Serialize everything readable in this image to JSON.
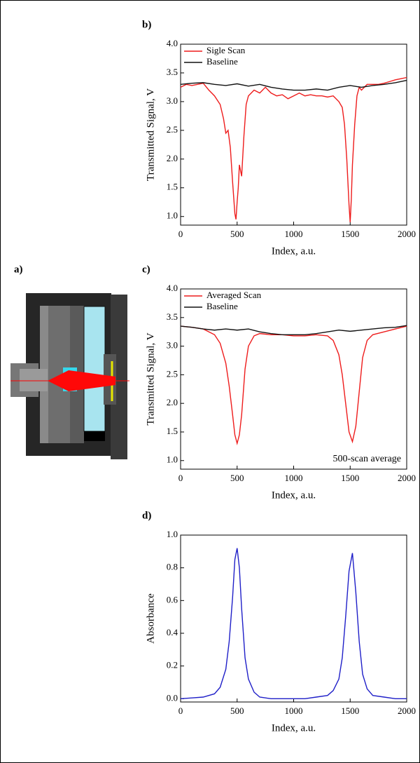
{
  "diagram": {
    "label": "a)"
  },
  "chart_data": [
    {
      "type": "line",
      "label": "b)",
      "xlabel": "Index, a.u.",
      "ylabel": "Transmitted Signal, V",
      "xlim": [
        0,
        2000
      ],
      "xticks": [
        0,
        500,
        1000,
        1500,
        2000
      ],
      "ylim": [
        0.85,
        4.0
      ],
      "yticks": [
        {
          "value": 1,
          "label": "1.0"
        },
        {
          "value": 1.5,
          "label": "1.5"
        },
        {
          "value": 2,
          "label": "2.0"
        },
        {
          "value": 2.5,
          "label": "2.5"
        },
        {
          "value": 3,
          "label": "3.0"
        },
        {
          "value": 3.5,
          "label": "3.5"
        },
        {
          "value": 4,
          "label": "4.0"
        }
      ],
      "legend": "upper left",
      "series": [
        {
          "name": "Sigle Scan",
          "color": "#ee1c1c",
          "x": [
            0,
            50,
            100,
            150,
            200,
            250,
            300,
            350,
            380,
            400,
            420,
            440,
            460,
            480,
            490,
            500,
            510,
            520,
            540,
            560,
            580,
            600,
            650,
            700,
            750,
            800,
            850,
            900,
            950,
            1000,
            1050,
            1100,
            1150,
            1200,
            1250,
            1300,
            1350,
            1400,
            1430,
            1450,
            1470,
            1490,
            1500,
            1510,
            1520,
            1540,
            1560,
            1580,
            1600,
            1650,
            1700,
            1750,
            1800,
            1850,
            1900,
            1950,
            2000
          ],
          "values": [
            3.25,
            3.3,
            3.28,
            3.3,
            3.32,
            3.2,
            3.1,
            2.95,
            2.7,
            2.45,
            2.5,
            2.2,
            1.6,
            1.05,
            0.95,
            1.25,
            1.5,
            1.9,
            1.7,
            2.4,
            2.95,
            3.1,
            3.2,
            3.15,
            3.25,
            3.15,
            3.1,
            3.12,
            3.05,
            3.1,
            3.15,
            3.1,
            3.12,
            3.1,
            3.1,
            3.08,
            3.1,
            3.0,
            2.9,
            2.6,
            2.0,
            1.2,
            0.9,
            1.3,
            1.9,
            2.6,
            3.1,
            3.25,
            3.2,
            3.3,
            3.3,
            3.3,
            3.32,
            3.35,
            3.38,
            3.4,
            3.42
          ]
        },
        {
          "name": "Baseline",
          "color": "#111111",
          "x": [
            0,
            100,
            200,
            300,
            400,
            500,
            600,
            700,
            800,
            900,
            1000,
            1100,
            1200,
            1300,
            1400,
            1500,
            1600,
            1700,
            1800,
            1900,
            2000
          ],
          "values": [
            3.3,
            3.32,
            3.33,
            3.3,
            3.28,
            3.31,
            3.27,
            3.3,
            3.25,
            3.22,
            3.2,
            3.2,
            3.22,
            3.2,
            3.25,
            3.28,
            3.25,
            3.28,
            3.3,
            3.33,
            3.37
          ]
        }
      ]
    },
    {
      "type": "line",
      "label": "c)",
      "xlabel": "Index, a.u.",
      "ylabel": "Transmitted Signal, V",
      "annotation": "500-scan average",
      "xlim": [
        0,
        2000
      ],
      "xticks": [
        0,
        500,
        1000,
        1500,
        2000
      ],
      "ylim": [
        0.85,
        4.0
      ],
      "yticks": [
        {
          "value": 1,
          "label": "1.0"
        },
        {
          "value": 1.5,
          "label": "1.5"
        },
        {
          "value": 2,
          "label": "2.0"
        },
        {
          "value": 2.5,
          "label": "2.5"
        },
        {
          "value": 3,
          "label": "3.0"
        },
        {
          "value": 3.5,
          "label": "3.5"
        },
        {
          "value": 4,
          "label": "4.0"
        }
      ],
      "legend": "upper left",
      "series": [
        {
          "name": "Averaged Scan",
          "color": "#ee1c1c",
          "x": [
            0,
            100,
            200,
            300,
            350,
            400,
            430,
            460,
            480,
            500,
            520,
            540,
            570,
            600,
            650,
            700,
            800,
            900,
            1000,
            1100,
            1200,
            1300,
            1350,
            1400,
            1430,
            1460,
            1490,
            1520,
            1550,
            1580,
            1610,
            1650,
            1700,
            1800,
            1900,
            2000
          ],
          "values": [
            3.35,
            3.33,
            3.3,
            3.2,
            3.05,
            2.7,
            2.3,
            1.8,
            1.45,
            1.3,
            1.45,
            1.8,
            2.6,
            3.0,
            3.18,
            3.22,
            3.2,
            3.2,
            3.18,
            3.18,
            3.2,
            3.18,
            3.1,
            2.85,
            2.5,
            2.0,
            1.5,
            1.33,
            1.6,
            2.2,
            2.8,
            3.1,
            3.2,
            3.25,
            3.3,
            3.35
          ]
        },
        {
          "name": "Baseline",
          "color": "#111111",
          "x": [
            0,
            100,
            200,
            300,
            400,
            500,
            600,
            700,
            800,
            900,
            1000,
            1100,
            1200,
            1300,
            1400,
            1500,
            1600,
            1700,
            1800,
            1900,
            2000
          ],
          "values": [
            3.35,
            3.33,
            3.3,
            3.28,
            3.3,
            3.28,
            3.3,
            3.25,
            3.22,
            3.2,
            3.2,
            3.2,
            3.22,
            3.25,
            3.28,
            3.26,
            3.28,
            3.3,
            3.32,
            3.33,
            3.36
          ]
        }
      ]
    },
    {
      "type": "line",
      "label": "d)",
      "xlabel": "Index, a.u.",
      "ylabel": "Absorbance",
      "xlim": [
        0,
        2000
      ],
      "xticks": [
        0,
        500,
        1000,
        1500,
        2000
      ],
      "ylim": [
        -0.02,
        1.0
      ],
      "yticks": [
        {
          "value": 0,
          "label": "0.0"
        },
        {
          "value": 0.2,
          "label": "0.2"
        },
        {
          "value": 0.4,
          "label": "0.4"
        },
        {
          "value": 0.6,
          "label": "0.6"
        },
        {
          "value": 0.8,
          "label": "0.8"
        },
        {
          "value": 1,
          "label": "1.0"
        }
      ],
      "series": [
        {
          "color": "#1f1fc8",
          "x": [
            0,
            100,
            200,
            300,
            350,
            400,
            430,
            460,
            480,
            500,
            520,
            540,
            570,
            600,
            650,
            700,
            800,
            900,
            1000,
            1100,
            1200,
            1300,
            1350,
            1400,
            1430,
            1460,
            1490,
            1520,
            1550,
            1580,
            1610,
            1650,
            1700,
            1800,
            1900,
            2000
          ],
          "values": [
            0,
            0.005,
            0.01,
            0.03,
            0.07,
            0.18,
            0.35,
            0.62,
            0.85,
            0.92,
            0.8,
            0.55,
            0.25,
            0.12,
            0.04,
            0.01,
            0,
            0,
            0,
            0,
            0.01,
            0.02,
            0.05,
            0.12,
            0.25,
            0.5,
            0.78,
            0.89,
            0.65,
            0.35,
            0.15,
            0.06,
            0.02,
            0.01,
            0,
            0
          ]
        }
      ]
    }
  ]
}
